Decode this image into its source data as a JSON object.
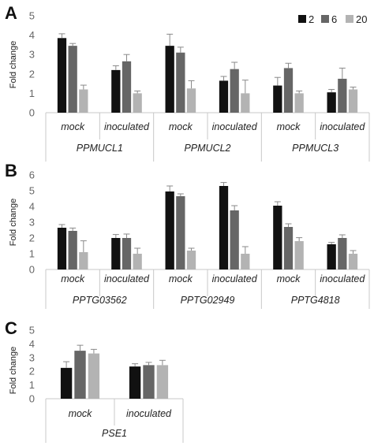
{
  "legend": {
    "entries": [
      {
        "label": "2",
        "color": "#111111"
      },
      {
        "label": "6",
        "color": "#666666"
      },
      {
        "label": "20",
        "color": "#b3b3b3"
      }
    ]
  },
  "chart_data": [
    {
      "panel": "A",
      "type": "bar",
      "ylabel": "Fold change",
      "ylim": [
        0,
        5
      ],
      "yticks": [
        0,
        1,
        2,
        3,
        4,
        5
      ],
      "groups": [
        "PPMUCL1",
        "PPMUCL2",
        "PPMUCL3"
      ],
      "categories": [
        "mock",
        "inoculated",
        "mock",
        "inoculated",
        "mock",
        "inoculated"
      ],
      "series": [
        {
          "name": "2",
          "values": [
            3.85,
            2.2,
            3.45,
            1.65,
            1.4,
            1.05
          ],
          "errors": [
            0.22,
            0.22,
            0.6,
            0.22,
            0.42,
            0.15
          ]
        },
        {
          "name": "6",
          "values": [
            3.45,
            2.65,
            3.1,
            2.25,
            2.3,
            1.75
          ],
          "errors": [
            0.12,
            0.35,
            0.28,
            0.35,
            0.25,
            0.55
          ]
        },
        {
          "name": "20",
          "values": [
            1.2,
            1.0,
            1.25,
            1.0,
            1.0,
            1.2
          ],
          "errors": [
            0.22,
            0.12,
            0.4,
            0.68,
            0.12,
            0.12
          ]
        }
      ]
    },
    {
      "panel": "B",
      "type": "bar",
      "ylabel": "Fold change",
      "ylim": [
        0,
        6
      ],
      "yticks": [
        0,
        1,
        2,
        3,
        4,
        5,
        6
      ],
      "groups": [
        "PPTG03562",
        "PPTG02949",
        "PPTG4818"
      ],
      "categories": [
        "mock",
        "inoculated",
        "mock",
        "inoculated",
        "mock",
        "inoculated"
      ],
      "series": [
        {
          "name": "2",
          "values": [
            2.65,
            2.0,
            4.95,
            5.3,
            4.05,
            1.6
          ],
          "errors": [
            0.2,
            0.22,
            0.35,
            0.22,
            0.25,
            0.12
          ]
        },
        {
          "name": "6",
          "values": [
            2.45,
            2.0,
            4.65,
            3.75,
            2.7,
            2.0
          ],
          "errors": [
            0.18,
            0.25,
            0.15,
            0.3,
            0.2,
            0.2
          ]
        },
        {
          "name": "20",
          "values": [
            1.1,
            1.0,
            1.2,
            1.0,
            1.8,
            1.0
          ],
          "errors": [
            0.72,
            0.35,
            0.15,
            0.45,
            0.22,
            0.2
          ]
        }
      ]
    },
    {
      "panel": "C",
      "type": "bar",
      "ylabel": "Fold change",
      "ylim": [
        0,
        5
      ],
      "yticks": [
        0,
        1,
        2,
        3,
        4,
        5
      ],
      "groups": [
        "PSE1"
      ],
      "categories": [
        "mock",
        "inoculated"
      ],
      "series": [
        {
          "name": "2",
          "values": [
            2.25,
            2.35
          ],
          "errors": [
            0.45,
            0.2
          ]
        },
        {
          "name": "6",
          "values": [
            3.5,
            2.45
          ],
          "errors": [
            0.4,
            0.2
          ]
        },
        {
          "name": "20",
          "values": [
            3.3,
            2.45
          ],
          "errors": [
            0.3,
            0.35
          ]
        }
      ]
    }
  ]
}
